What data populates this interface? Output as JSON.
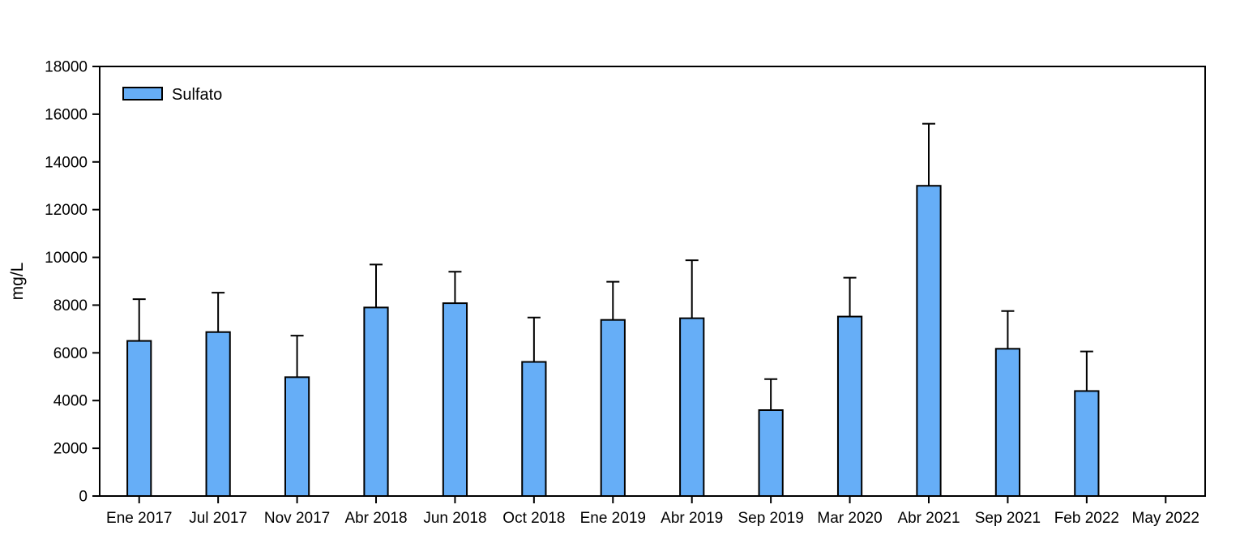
{
  "chart_data": {
    "type": "bar",
    "title": "",
    "xlabel": "",
    "ylabel": "mg/L",
    "ylim": [
      0,
      18000
    ],
    "ytick_step": 2000,
    "ytick_labels": [
      "0",
      "2000",
      "4000",
      "6000",
      "8000",
      "10000",
      "12000",
      "14000",
      "16000",
      "18000"
    ],
    "grid": false,
    "frame": true,
    "legend_position": "top-left",
    "categories": [
      "Ene 2017",
      "Jul 2017",
      "Nov 2017",
      "Abr 2018",
      "Jun 2018",
      "Oct 2018",
      "Ene 2019",
      "Abr 2019",
      "Sep 2019",
      "Mar 2020",
      "Abr 2021",
      "Sep 2021",
      "Feb 2022",
      "May 2022"
    ],
    "series": [
      {
        "name": "Sulfato",
        "color": "#66AEF7",
        "border_color": "#000000",
        "values": [
          6500,
          6870,
          4980,
          7900,
          8080,
          5620,
          7380,
          7450,
          3600,
          7520,
          13000,
          6170,
          4400,
          null
        ],
        "errors_plus": [
          1750,
          1650,
          1740,
          1800,
          1320,
          1860,
          1600,
          2430,
          1300,
          1630,
          2600,
          1580,
          1660,
          null
        ]
      }
    ],
    "legend": {
      "label": "Sulfato",
      "swatch_color": "#66AEF7"
    },
    "axis_color": "#000000"
  }
}
